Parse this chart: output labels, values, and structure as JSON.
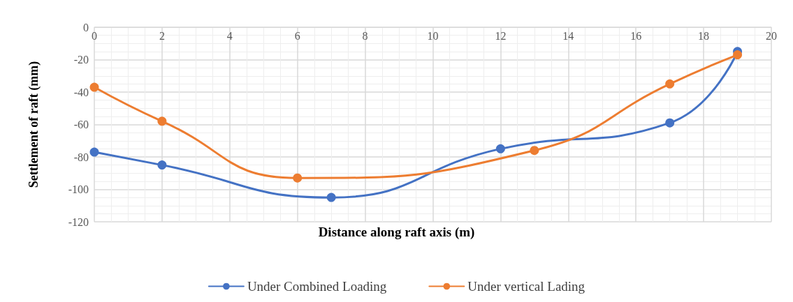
{
  "chart_data": {
    "type": "line",
    "xlabel": "Distance along raft axis (m)",
    "ylabel": "Settlement of raft (mm)",
    "xlim": [
      0,
      20
    ],
    "xticks": [
      0,
      2,
      4,
      6,
      8,
      10,
      12,
      14,
      16,
      18,
      20
    ],
    "ylim": [
      -120,
      0
    ],
    "yticks": [
      -120,
      -100,
      -80,
      -60,
      -40,
      -20,
      0
    ],
    "grid": true,
    "legend": "bottom",
    "marker": "circle",
    "line_style": "solid",
    "series": [
      {
        "name": "Under Combined Loading",
        "color": "#4472c4",
        "x": [
          0,
          2,
          7,
          12,
          17,
          19
        ],
        "values": [
          -77,
          -85,
          -105,
          -75,
          -59,
          -15
        ]
      },
      {
        "name": "Under vertical Lading",
        "color": "#ed7d31",
        "x": [
          0,
          2,
          6,
          13,
          17,
          19
        ],
        "values": [
          -37,
          -58,
          -93,
          -76,
          -35,
          -17
        ]
      }
    ]
  }
}
